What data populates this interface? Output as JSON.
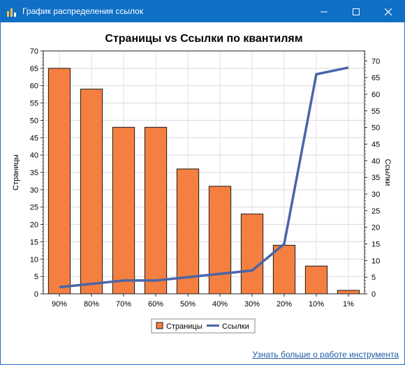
{
  "window": {
    "title": "График распределения ссылок",
    "minimize_label": "—",
    "maximize_label": "□",
    "close_label": "✕"
  },
  "chart_data": {
    "type": "bar",
    "title": "Страницы vs Ссылки по квантилям",
    "categories": [
      "90%",
      "80%",
      "70%",
      "60%",
      "50%",
      "40%",
      "30%",
      "20%",
      "10%",
      "1%"
    ],
    "series": [
      {
        "name": "Страницы",
        "type": "bar",
        "axis": "left",
        "color": "#f47f40",
        "values": [
          65,
          59,
          48,
          48,
          36,
          31,
          23,
          14,
          8,
          1
        ]
      },
      {
        "name": "Ссылки",
        "type": "line",
        "axis": "right",
        "color": "#4a65a8",
        "values": [
          2,
          3,
          4,
          4,
          5,
          6,
          7,
          15,
          66,
          68
        ]
      }
    ],
    "ylabel": "Страницы",
    "y2label": "Ссылки",
    "ylim": [
      0,
      70
    ],
    "y2lim": [
      0,
      73
    ],
    "yticks": [
      0,
      5,
      10,
      15,
      20,
      25,
      30,
      35,
      40,
      45,
      50,
      55,
      60,
      65,
      70
    ],
    "y2ticks": [
      0,
      5,
      10,
      15,
      20,
      25,
      30,
      35,
      40,
      45,
      50,
      55,
      60,
      65,
      70
    ],
    "grid": true,
    "legend": "bottom-center"
  },
  "footer": {
    "link_text": "Узнать больше о работе инструмента"
  }
}
